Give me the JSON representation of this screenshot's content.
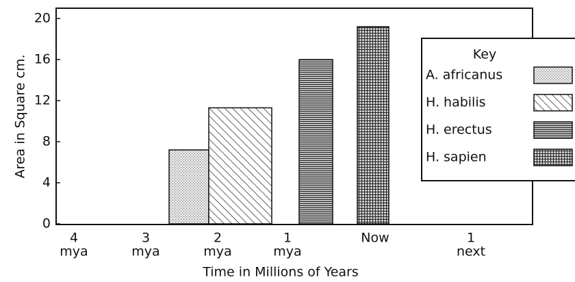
{
  "chart_data": {
    "type": "bar",
    "ylabel": "Area in Square cm.",
    "xlabel": "Time in Millions of Years",
    "xtick_labels": [
      [
        "4",
        "mya"
      ],
      [
        "3",
        "mya"
      ],
      [
        "2",
        "mya"
      ],
      [
        "1",
        "mya"
      ],
      [
        "Now"
      ],
      [
        "1",
        "next"
      ]
    ],
    "legend_title": "Key",
    "series": [
      {
        "name": "A. africanus",
        "pattern": "stipple",
        "values": [
          7.2
        ]
      },
      {
        "name": "H. habilis",
        "pattern": "diagonal",
        "values": [
          11.3
        ]
      },
      {
        "name": "H. erectus",
        "pattern": "horizontal",
        "values": [
          16
        ]
      },
      {
        "name": "H. sapien",
        "pattern": "grid",
        "values": [
          19.2
        ]
      }
    ],
    "ylim": [
      0,
      20
    ],
    "yticks": [
      0,
      4,
      8,
      12,
      16,
      20
    ]
  }
}
